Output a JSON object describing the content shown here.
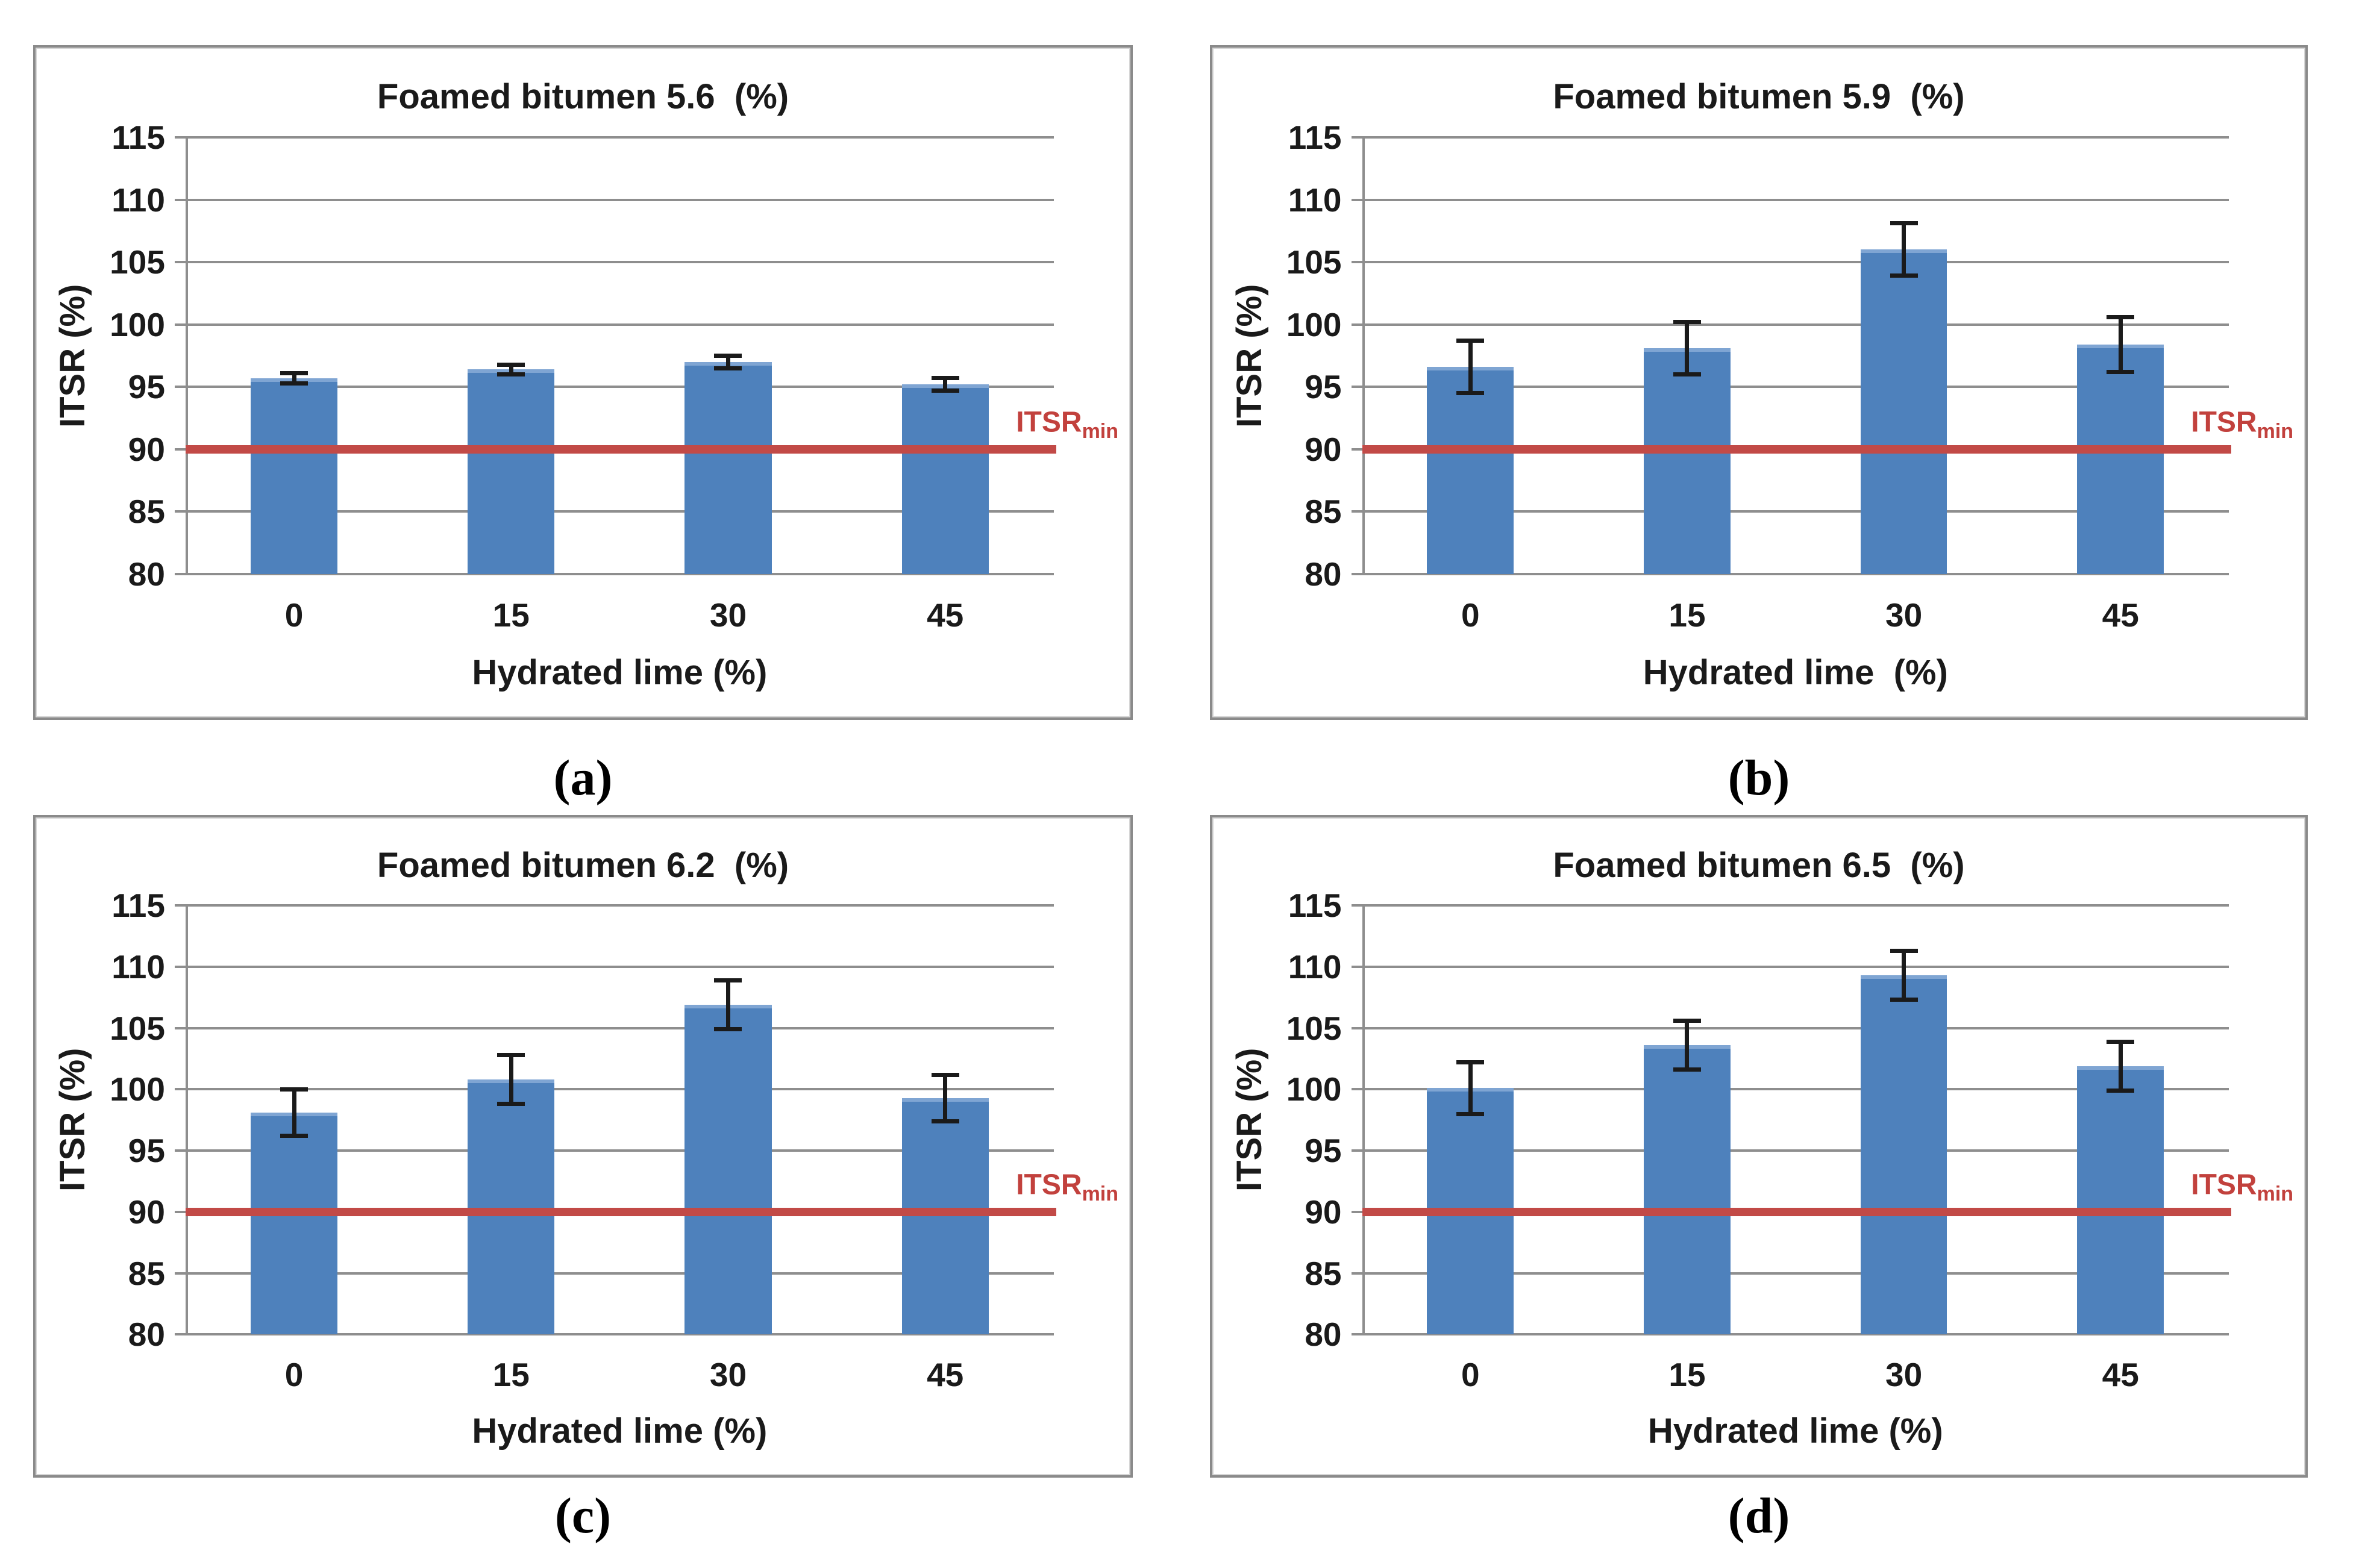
{
  "page": {
    "background": "#ffffff"
  },
  "style": {
    "bar_color": "#4E81BC",
    "bar_top_edge": "#7FA5D3",
    "threshold_color": "#C24A47",
    "gridline_color": "#8E8E8E",
    "error_bar_color": "#1A1A1A"
  },
  "chart_data": [
    {
      "type": "bar",
      "panel_label": "(a)",
      "title": "Foamed bitumen 5.6  (%)",
      "xlabel": "Hydrated lime (%)",
      "ylabel": "ITSR (%)",
      "categories": [
        "0",
        "15",
        "30",
        "45"
      ],
      "values": [
        95.7,
        96.4,
        97.0,
        95.2
      ],
      "error_bars": [
        0.4,
        0.4,
        0.5,
        0.5
      ],
      "ylim": [
        80,
        115
      ],
      "yticks": [
        115,
        110,
        105,
        100,
        95,
        90,
        85,
        80
      ],
      "grid": true,
      "legend": "none",
      "threshold": {
        "value": 90,
        "label_main": "ITSR",
        "label_sub": "min"
      }
    },
    {
      "type": "bar",
      "panel_label": "(b)",
      "title": "Foamed bitumen 5.9  (%)",
      "xlabel": "Hydrated lime  (%)",
      "ylabel": "ITSR (%)",
      "categories": [
        "0",
        "15",
        "30",
        "45"
      ],
      "values": [
        96.6,
        98.1,
        106.0,
        98.4
      ],
      "error_bars": [
        2.1,
        2.1,
        2.1,
        2.2
      ],
      "ylim": [
        80,
        115
      ],
      "yticks": [
        115,
        110,
        105,
        100,
        95,
        90,
        85,
        80
      ],
      "grid": true,
      "legend": "none",
      "threshold": {
        "value": 90,
        "label_main": "ITSR",
        "label_sub": "min"
      }
    },
    {
      "type": "bar",
      "panel_label": "(c)",
      "title": "Foamed bitumen 6.2  (%)",
      "xlabel": "Hydrated lime (%)",
      "ylabel": "ITSR (%)",
      "categories": [
        "0",
        "15",
        "30",
        "45"
      ],
      "values": [
        98.1,
        100.8,
        106.9,
        99.3
      ],
      "error_bars": [
        1.9,
        2.0,
        2.0,
        1.9
      ],
      "ylim": [
        80,
        115
      ],
      "yticks": [
        115,
        110,
        105,
        100,
        95,
        90,
        85,
        80
      ],
      "grid": true,
      "legend": "none",
      "threshold": {
        "value": 90,
        "label_main": "ITSR",
        "label_sub": "min"
      }
    },
    {
      "type": "bar",
      "panel_label": "(d)",
      "title": "Foamed bitumen 6.5  (%)",
      "xlabel": "Hydrated lime (%)",
      "ylabel": "ITSR (%)",
      "categories": [
        "0",
        "15",
        "30",
        "45"
      ],
      "values": [
        100.1,
        103.6,
        109.3,
        101.9
      ],
      "error_bars": [
        2.1,
        2.0,
        2.0,
        2.0
      ],
      "ylim": [
        80,
        115
      ],
      "yticks": [
        115,
        110,
        105,
        100,
        95,
        90,
        85,
        80
      ],
      "grid": true,
      "legend": "none",
      "threshold": {
        "value": 90,
        "label_main": "ITSR",
        "label_sub": "min"
      }
    }
  ]
}
